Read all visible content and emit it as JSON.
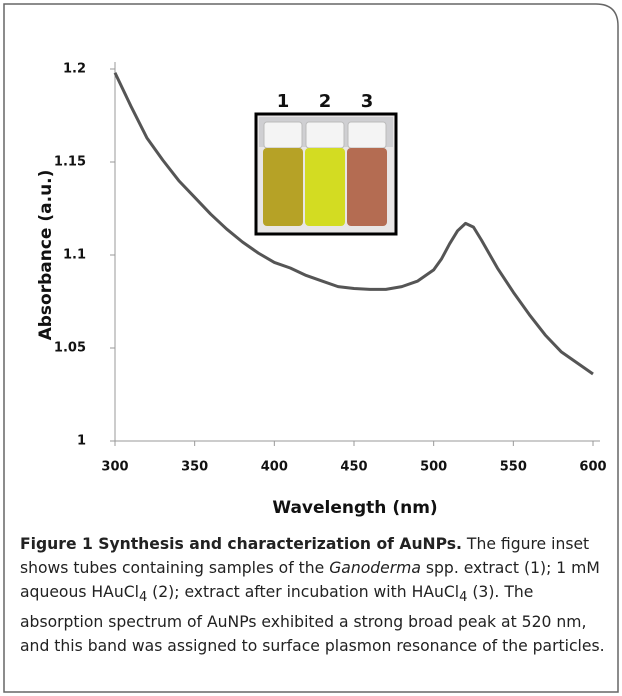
{
  "chart_data": {
    "type": "line",
    "xlabel": "Wavelength (nm)",
    "ylabel": "Absorbance (a.u.)",
    "x": [
      300,
      310,
      320,
      330,
      340,
      350,
      360,
      370,
      380,
      390,
      400,
      410,
      420,
      430,
      440,
      450,
      460,
      470,
      480,
      490,
      500,
      505,
      510,
      515,
      520,
      525,
      530,
      540,
      550,
      560,
      570,
      580,
      590,
      600
    ],
    "series": [
      {
        "color": "#555555",
        "values": [
          1.198,
          1.18,
          1.163,
          1.151,
          1.14,
          1.131,
          1.122,
          1.114,
          1.107,
          1.101,
          1.096,
          1.093,
          1.089,
          1.086,
          1.083,
          1.082,
          1.0815,
          1.0815,
          1.083,
          1.086,
          1.092,
          1.098,
          1.106,
          1.113,
          1.117,
          1.115,
          1.108,
          1.093,
          1.08,
          1.068,
          1.057,
          1.048,
          1.042,
          1.036
        ]
      }
    ],
    "xlim": [
      300,
      600
    ],
    "xticks": [
      300,
      350,
      400,
      450,
      500,
      550,
      600
    ],
    "ylim": [
      1,
      1.2
    ],
    "yticks": [
      1,
      1.05,
      1.1,
      1.15,
      1.2
    ],
    "inset_labels": [
      "1",
      "2",
      "3"
    ]
  },
  "caption": {
    "label": "Figure 1 Synthesis and characterization of AuNPs.",
    "text_1": " The figure inset shows tubes containing samples of the ",
    "italic": "Ganoderma",
    "text_2": " spp. extract (1); 1 mM aqueous HAuCl",
    "sub_1": "4",
    "text_3": " (2); extract after incubation with HAuCl",
    "sub_2": "4",
    "text_4": " (3). The absorption spectrum of AuNPs exhibited a strong broad peak at 520 nm, and this band was assigned to surface plasmon resonance of the particles."
  }
}
